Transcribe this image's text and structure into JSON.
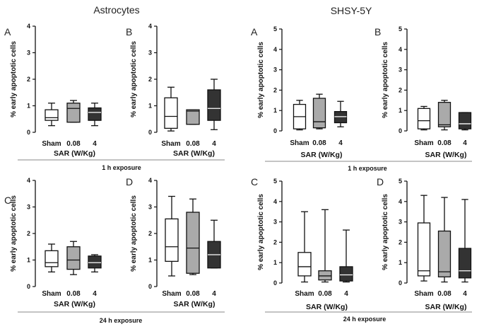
{
  "titles": {
    "astrocytes": "Astrocytes",
    "shsy5y": "SHSY-5Y"
  },
  "exposure_labels": {
    "h1": "1 h exposure",
    "h24": "24 h exposure"
  },
  "colors": {
    "sham": "#ffffff",
    "sar008": "#aaaaaa",
    "sar4": "#333333",
    "stroke": "#111111"
  },
  "chart_data": [
    {
      "type": "box",
      "group": "Astrocytes",
      "panel": "A",
      "exposure": "1 h exposure",
      "ylabel": "% early apoptotic cells",
      "xlabel": "SAR (W/Kg)",
      "categories": [
        "Sham",
        "0.08",
        "4"
      ],
      "ylim": [
        0,
        4
      ],
      "ticks": [
        "0",
        "1",
        "2",
        "3",
        "4"
      ],
      "boxes": [
        {
          "min": 0.25,
          "q1": 0.45,
          "median": 0.55,
          "q3": 0.85,
          "max": 1.1
        },
        {
          "min": 0.38,
          "q1": 0.38,
          "median": 0.9,
          "q3": 1.1,
          "max": 1.2
        },
        {
          "min": 0.25,
          "q1": 0.45,
          "median": 0.75,
          "q3": 0.92,
          "max": 1.1
        }
      ]
    },
    {
      "type": "box",
      "group": "Astrocytes",
      "panel": "B",
      "exposure": "1 h exposure",
      "ylabel": "% early apoptotic cells",
      "xlabel": "SAR (W/Kg)",
      "categories": [
        "Sham",
        "0.08",
        "4"
      ],
      "ylim": [
        0,
        4
      ],
      "ticks": [
        "0",
        "1",
        "2",
        "3",
        "4"
      ],
      "boxes": [
        {
          "min": 0.05,
          "q1": 0.15,
          "median": 0.6,
          "q3": 1.3,
          "max": 1.7
        },
        {
          "min": 0.3,
          "q1": 0.3,
          "median": 0.8,
          "q3": 0.85,
          "max": 0.85
        },
        {
          "min": 0.1,
          "q1": 0.45,
          "median": 0.9,
          "q3": 1.6,
          "max": 2.0
        }
      ]
    },
    {
      "type": "box",
      "group": "SHSY-5Y",
      "panel": "A",
      "exposure": "1 h exposure",
      "ylabel": "% early apoptotic cells",
      "xlabel": "SAR (W/Kg)",
      "categories": [
        "Sham",
        "0.08",
        "4"
      ],
      "ylim": [
        0,
        5
      ],
      "ticks": [
        "0",
        "1",
        "2",
        "3",
        "4",
        "5"
      ],
      "boxes": [
        {
          "min": 0.05,
          "q1": 0.1,
          "median": 0.7,
          "q3": 1.3,
          "max": 1.5
        },
        {
          "min": 0.1,
          "q1": 0.15,
          "median": 0.45,
          "q3": 1.6,
          "max": 1.8
        },
        {
          "min": 0.2,
          "q1": 0.4,
          "median": 0.7,
          "q3": 0.95,
          "max": 1.45
        }
      ]
    },
    {
      "type": "box",
      "group": "SHSY-5Y",
      "panel": "B",
      "exposure": "1 h exposure",
      "ylabel": "% early apoptotic cells",
      "xlabel": "SAR (W/Kg)",
      "categories": [
        "Sham",
        "0.08",
        "4"
      ],
      "ylim": [
        0,
        5
      ],
      "ticks": [
        "0",
        "1",
        "2",
        "3",
        "4",
        "5"
      ],
      "boxes": [
        {
          "min": 0.05,
          "q1": 0.1,
          "median": 0.5,
          "q3": 1.1,
          "max": 1.2
        },
        {
          "min": 0.05,
          "q1": 0.2,
          "median": 0.3,
          "q3": 1.4,
          "max": 1.5
        },
        {
          "min": 0.05,
          "q1": 0.1,
          "median": 0.35,
          "q3": 0.9,
          "max": 0.9
        }
      ]
    },
    {
      "type": "box",
      "group": "Astrocytes",
      "panel": "C",
      "exposure": "24 h exposure",
      "ylabel": "% early apoptotic cells",
      "xlabel": "SAR (W/Kg)",
      "categories": [
        "Sham",
        "0.08",
        "4"
      ],
      "ylim": [
        0,
        4
      ],
      "ticks": [
        "0",
        "1",
        "2",
        "3",
        "4"
      ],
      "boxes": [
        {
          "min": 0.55,
          "q1": 0.75,
          "median": 0.9,
          "q3": 1.35,
          "max": 1.6
        },
        {
          "min": 0.45,
          "q1": 0.65,
          "median": 1.0,
          "q3": 1.5,
          "max": 1.7
        },
        {
          "min": 0.55,
          "q1": 0.7,
          "median": 0.9,
          "q3": 1.15,
          "max": 1.2
        }
      ]
    },
    {
      "type": "box",
      "group": "Astrocytes",
      "panel": "D",
      "exposure": "24 h exposure",
      "ylabel": "% early apoptotic cells",
      "xlabel": "SAR (W/Kg)",
      "categories": [
        "Sham",
        "0.08",
        "4"
      ],
      "ylim": [
        0,
        4
      ],
      "ticks": [
        "0",
        "1",
        "2",
        "3",
        "4"
      ],
      "boxes": [
        {
          "min": 0.4,
          "q1": 0.95,
          "median": 1.5,
          "q3": 2.55,
          "max": 3.4
        },
        {
          "min": 0.45,
          "q1": 0.5,
          "median": 1.45,
          "q3": 2.8,
          "max": 3.3
        },
        {
          "min": 0.7,
          "q1": 0.7,
          "median": 1.2,
          "q3": 1.7,
          "max": 2.5
        }
      ]
    },
    {
      "type": "box",
      "group": "SHSY-5Y",
      "panel": "C",
      "exposure": "24 h exposure",
      "ylabel": "% early apoptotic cells",
      "xlabel": "SAR (W/Kg)",
      "categories": [
        "Sham",
        "0.08",
        "4"
      ],
      "ylim": [
        0,
        5
      ],
      "ticks": [
        "0",
        "1",
        "2",
        "3",
        "4",
        "5"
      ],
      "boxes": [
        {
          "min": 0.05,
          "q1": 0.35,
          "median": 0.8,
          "q3": 1.5,
          "max": 3.5
        },
        {
          "min": 0.05,
          "q1": 0.15,
          "median": 0.35,
          "q3": 0.6,
          "max": 3.6
        },
        {
          "min": 0.05,
          "q1": 0.1,
          "median": 0.4,
          "q3": 0.8,
          "max": 2.6
        }
      ]
    },
    {
      "type": "box",
      "group": "SHSY-5Y",
      "panel": "D",
      "exposure": "24 h exposure",
      "ylabel": "% early apoptotic cells",
      "xlabel": "SAR (W/Kg)",
      "categories": [
        "Sham",
        "0.08",
        "4"
      ],
      "ylim": [
        0,
        5
      ],
      "ticks": [
        "0",
        "1",
        "2",
        "3",
        "4",
        "5"
      ],
      "boxes": [
        {
          "min": 0.1,
          "q1": 0.35,
          "median": 0.6,
          "q3": 2.95,
          "max": 4.3
        },
        {
          "min": 0.05,
          "q1": 0.3,
          "median": 0.55,
          "q3": 2.55,
          "max": 4.2
        },
        {
          "min": 0.05,
          "q1": 0.25,
          "median": 0.6,
          "q3": 1.7,
          "max": 4.1
        }
      ]
    }
  ]
}
